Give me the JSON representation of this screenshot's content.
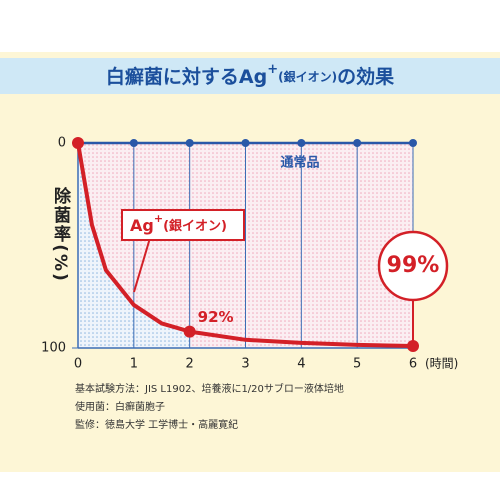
{
  "chart_data": {
    "type": "line",
    "title_parts": [
      "白癬菌に対するAg",
      "+",
      "(銀イオン)",
      "の効果"
    ],
    "y_label": "除菌率(%)",
    "x_label": "(時間)",
    "x": [
      0,
      0.25,
      0.5,
      1,
      1.5,
      2,
      3,
      4,
      5,
      6
    ],
    "xlim": [
      0,
      6
    ],
    "xticks": [
      0,
      1,
      2,
      3,
      4,
      5,
      6
    ],
    "ylim": [
      0,
      100
    ],
    "yticks": [
      0,
      100
    ],
    "y_inverted": true,
    "grid": true,
    "series": [
      {
        "name": "通常品",
        "color": "#2a58a8",
        "x": [
          0,
          1,
          2,
          3,
          4,
          5,
          6
        ],
        "values": [
          0,
          0,
          0,
          0,
          0,
          0,
          0
        ]
      },
      {
        "name_parts": [
          "Ag",
          "+",
          "(銀イオン)"
        ],
        "color": "#d32027",
        "values": [
          0,
          40,
          62,
          79,
          88,
          92,
          96,
          97.5,
          98.5,
          99
        ],
        "markers": [
          true,
          false,
          false,
          false,
          false,
          true,
          false,
          false,
          false,
          true
        ],
        "value_labels": [
          null,
          null,
          null,
          null,
          null,
          "92%",
          null,
          null,
          null,
          "99%"
        ]
      }
    ],
    "notes": [
      "基本試験方法：JIS L1902、培養液に1/20サブロー液体培地",
      "使用菌：白癬菌胞子",
      "監修：徳島大学 工学博士・高麗寛紀"
    ]
  }
}
